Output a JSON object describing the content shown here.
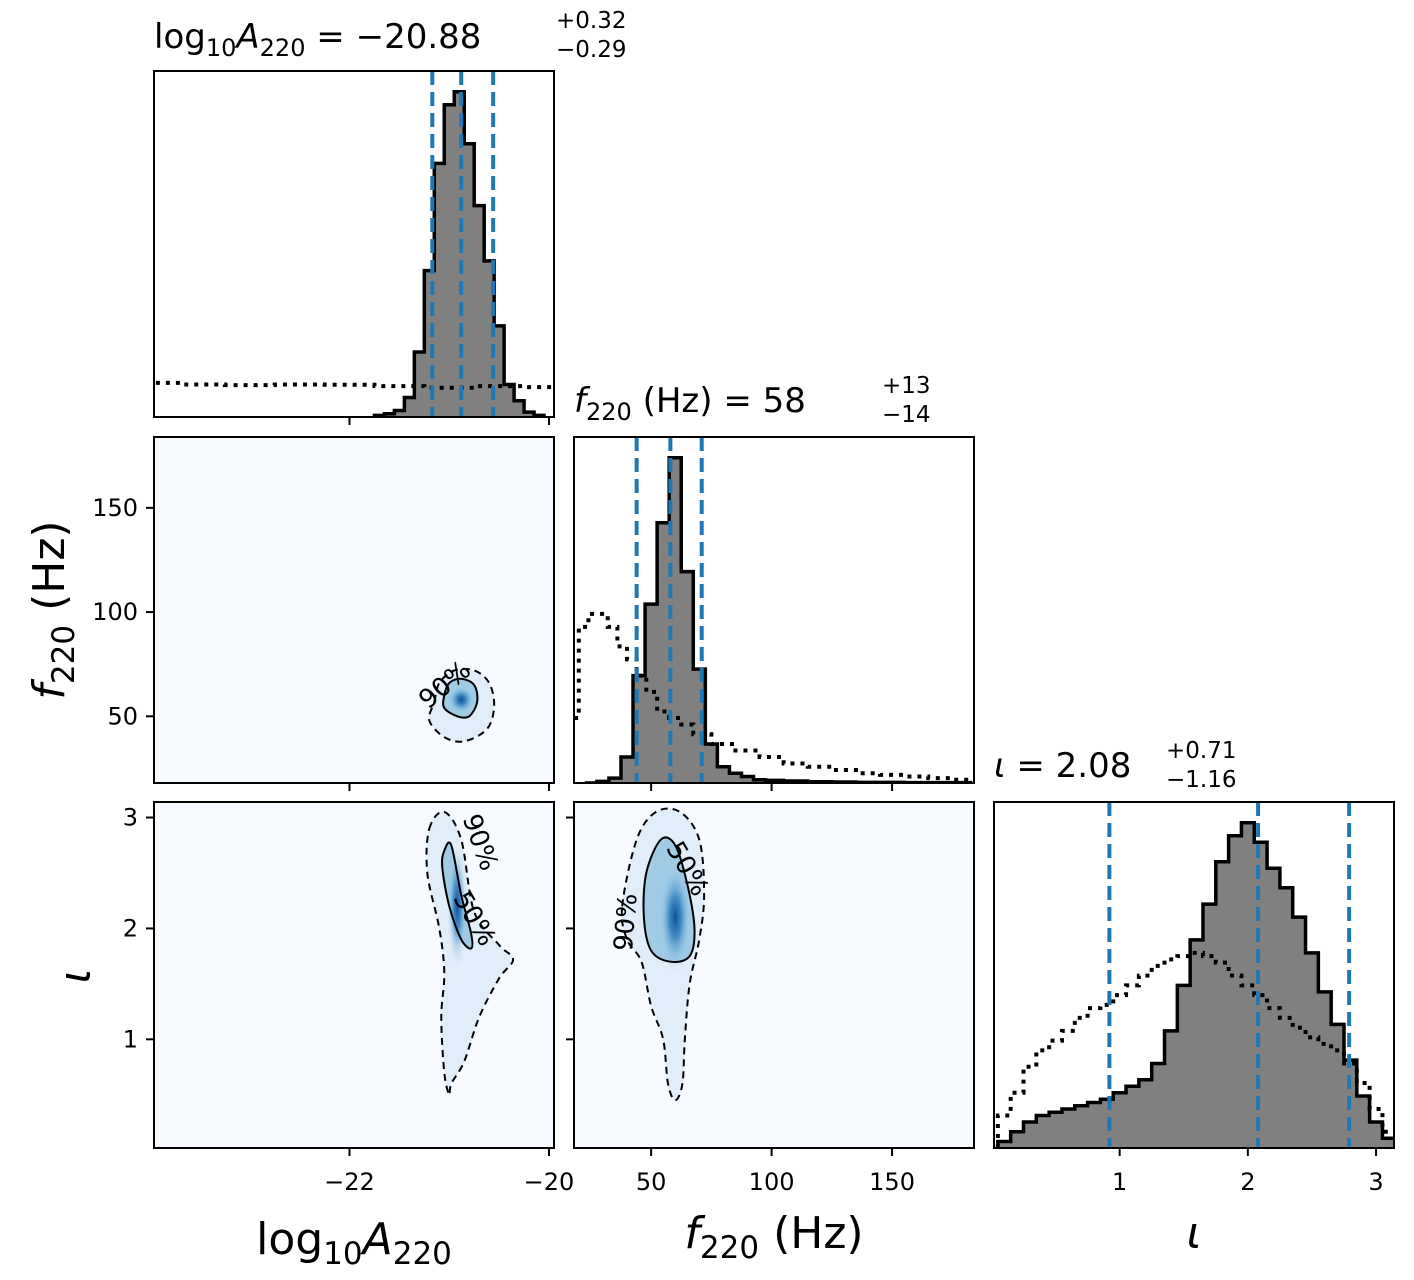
{
  "chart_data": {
    "type": "corner",
    "parameters": [
      {
        "key": "logA",
        "label_base": "log",
        "label_sub1": "10",
        "label_mid": "A",
        "label_sub2": "220",
        "label_unit": "",
        "range": [
          -23.96,
          -19.95
        ],
        "ticks": [
          -22,
          -20
        ],
        "tick_labels": [
          "−22",
          "−20"
        ],
        "title_value": "−20.88",
        "title_plus": "+0.32",
        "title_minus": "−0.29",
        "median": -20.88,
        "q_low": -21.17,
        "q_high": -20.56
      },
      {
        "key": "f",
        "label_base": "f",
        "label_sub1": "220",
        "label_mid": "",
        "label_sub2": "",
        "label_unit": " (Hz)",
        "range": [
          18,
          184
        ],
        "ticks": [
          50,
          100,
          150
        ],
        "tick_labels": [
          "50",
          "100",
          "150"
        ],
        "title_value": "58",
        "title_plus": "+13",
        "title_minus": "−14",
        "median": 58,
        "q_low": 44,
        "q_high": 71
      },
      {
        "key": "iota",
        "label_base": "ι",
        "label_sub1": "",
        "label_mid": "",
        "label_sub2": "",
        "label_unit": "",
        "range": [
          0.02,
          3.14
        ],
        "ticks": [
          1,
          2,
          3
        ],
        "tick_labels": [
          "1",
          "2",
          "3"
        ],
        "title_value": "2.08",
        "title_plus": "+0.71",
        "title_minus": "−1.16",
        "median": 2.08,
        "q_low": 0.92,
        "q_high": 2.79
      }
    ],
    "contour_labels": [
      "90%",
      "50%"
    ],
    "colors": {
      "quantile_line": "#1f77b4",
      "hist_fill": "#808080",
      "hist_edge": "#000000",
      "density": "#08519c"
    },
    "marginals": {
      "logA": {
        "posterior": {
          "x": [
            -21.7,
            -21.6,
            -21.5,
            -21.4,
            -21.3,
            -21.2,
            -21.1,
            -21.0,
            -20.9,
            -20.8,
            -20.7,
            -20.6,
            -20.5,
            -20.4,
            -20.3,
            -20.2,
            -20.1
          ],
          "y": [
            0.005,
            0.01,
            0.02,
            0.06,
            0.2,
            0.45,
            0.78,
            0.96,
            1.0,
            0.84,
            0.65,
            0.48,
            0.28,
            0.1,
            0.05,
            0.015,
            0.005
          ]
        },
        "prior": {
          "x": [
            -23.9,
            -23.5,
            -23.0,
            -22.5,
            -22.0,
            -21.5,
            -21.0,
            -20.5,
            -20.0
          ],
          "y": [
            0.105,
            0.1,
            0.098,
            0.1,
            0.099,
            0.095,
            0.09,
            0.095,
            0.092
          ]
        }
      },
      "f": {
        "posterior": {
          "x": [
            25,
            30,
            35,
            40,
            45,
            50,
            55,
            60,
            65,
            70,
            75,
            80,
            85,
            90,
            95,
            100,
            110,
            120,
            130,
            140,
            150,
            160,
            170,
            180
          ],
          "y": [
            0.0,
            0.005,
            0.015,
            0.08,
            0.33,
            0.55,
            0.8,
            1.0,
            0.65,
            0.35,
            0.12,
            0.05,
            0.03,
            0.02,
            0.01,
            0.008,
            0.006,
            0.004,
            0.003,
            0.002,
            0.002,
            0.001,
            0.001,
            0.001
          ]
        },
        "prior": {
          "x": [
            18,
            22,
            26,
            30,
            34,
            38,
            42,
            46,
            50,
            55,
            60,
            65,
            70,
            80,
            90,
            100,
            110,
            120,
            130,
            140,
            150,
            160,
            170,
            180
          ],
          "y": [
            0.2,
            0.48,
            0.52,
            0.52,
            0.48,
            0.42,
            0.38,
            0.33,
            0.28,
            0.22,
            0.2,
            0.18,
            0.15,
            0.12,
            0.1,
            0.08,
            0.06,
            0.05,
            0.04,
            0.03,
            0.025,
            0.02,
            0.015,
            0.01
          ]
        }
      },
      "iota": {
        "posterior": {
          "x": [
            0.1,
            0.2,
            0.3,
            0.4,
            0.5,
            0.6,
            0.7,
            0.8,
            0.9,
            1.0,
            1.1,
            1.2,
            1.3,
            1.4,
            1.5,
            1.6,
            1.7,
            1.8,
            1.9,
            2.0,
            2.1,
            2.2,
            2.3,
            2.4,
            2.5,
            2.6,
            2.7,
            2.8,
            2.9,
            3.0,
            3.1
          ],
          "y": [
            0.02,
            0.05,
            0.08,
            0.1,
            0.11,
            0.12,
            0.13,
            0.14,
            0.15,
            0.17,
            0.19,
            0.21,
            0.26,
            0.36,
            0.5,
            0.64,
            0.75,
            0.88,
            0.96,
            1.0,
            0.94,
            0.86,
            0.8,
            0.71,
            0.6,
            0.48,
            0.38,
            0.27,
            0.16,
            0.08,
            0.03
          ]
        },
        "prior": {
          "x": [
            0.1,
            0.2,
            0.3,
            0.4,
            0.5,
            0.6,
            0.7,
            0.8,
            0.9,
            1.0,
            1.1,
            1.2,
            1.3,
            1.4,
            1.5,
            1.6,
            1.7,
            1.8,
            1.9,
            2.0,
            2.1,
            2.2,
            2.3,
            2.4,
            2.5,
            2.6,
            2.7,
            2.8,
            2.9,
            3.0,
            3.1
          ],
          "y": [
            0.1,
            0.17,
            0.25,
            0.3,
            0.33,
            0.36,
            0.4,
            0.43,
            0.44,
            0.47,
            0.5,
            0.53,
            0.56,
            0.58,
            0.59,
            0.6,
            0.59,
            0.57,
            0.53,
            0.5,
            0.47,
            0.43,
            0.4,
            0.37,
            0.34,
            0.32,
            0.3,
            0.26,
            0.2,
            0.12,
            0.05
          ]
        }
      }
    },
    "joint": {
      "f_vs_logA": {
        "center": [
          -20.88,
          58
        ],
        "contour50": [
          [
            -21.05,
            60
          ],
          [
            -21.0,
            66
          ],
          [
            -20.88,
            68
          ],
          [
            -20.75,
            65
          ],
          [
            -20.72,
            57
          ],
          [
            -20.8,
            50
          ],
          [
            -20.92,
            50
          ],
          [
            -21.05,
            54
          ]
        ],
        "contour90": [
          [
            -21.15,
            57
          ],
          [
            -21.1,
            66
          ],
          [
            -20.95,
            72
          ],
          [
            -20.75,
            72
          ],
          [
            -20.6,
            66
          ],
          [
            -20.55,
            55
          ],
          [
            -20.62,
            44
          ],
          [
            -20.85,
            38
          ],
          [
            -21.05,
            40
          ],
          [
            -21.2,
            48
          ]
        ]
      },
      "iota_vs_logA": {
        "center": [
          -20.92,
          2.2
        ],
        "contour50": [
          [
            -21.05,
            2.7
          ],
          [
            -20.98,
            2.75
          ],
          [
            -20.88,
            2.3
          ],
          [
            -20.78,
            1.95
          ],
          [
            -20.78,
            1.82
          ],
          [
            -20.88,
            1.9
          ],
          [
            -21.0,
            2.2
          ],
          [
            -21.07,
            2.55
          ]
        ],
        "contour90": [
          [
            -21.2,
            2.9
          ],
          [
            -21.05,
            3.05
          ],
          [
            -20.88,
            2.8
          ],
          [
            -20.75,
            2.15
          ],
          [
            -20.5,
            1.85
          ],
          [
            -20.36,
            1.72
          ],
          [
            -20.5,
            1.55
          ],
          [
            -20.7,
            1.2
          ],
          [
            -20.85,
            0.8
          ],
          [
            -20.98,
            0.6
          ],
          [
            -21.0,
            0.5
          ],
          [
            -21.05,
            0.7
          ],
          [
            -21.08,
            1.2
          ],
          [
            -21.05,
            1.6
          ],
          [
            -21.1,
            2.0
          ],
          [
            -21.22,
            2.5
          ]
        ]
      },
      "iota_vs_f": {
        "center": [
          60,
          2.1
        ],
        "contour50": [
          [
            48,
            2.5
          ],
          [
            54,
            2.8
          ],
          [
            60,
            2.75
          ],
          [
            65,
            2.4
          ],
          [
            68,
            2.0
          ],
          [
            66,
            1.75
          ],
          [
            58,
            1.7
          ],
          [
            50,
            1.8
          ],
          [
            47,
            2.1
          ]
        ],
        "contour90": [
          [
            38,
            2.2
          ],
          [
            44,
            2.8
          ],
          [
            52,
            3.05
          ],
          [
            62,
            3.05
          ],
          [
            70,
            2.8
          ],
          [
            72,
            2.3
          ],
          [
            70,
            1.9
          ],
          [
            66,
            1.5
          ],
          [
            64,
            1.0
          ],
          [
            63,
            0.6
          ],
          [
            60,
            0.45
          ],
          [
            57,
            0.6
          ],
          [
            55,
            1.0
          ],
          [
            50,
            1.3
          ],
          [
            46,
            1.7
          ],
          [
            40,
            1.9
          ]
        ]
      }
    }
  }
}
